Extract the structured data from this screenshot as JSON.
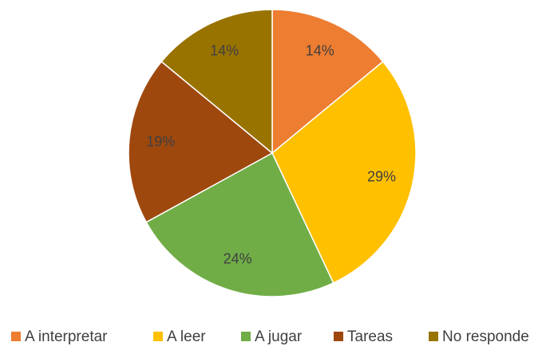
{
  "chart_data": {
    "type": "pie",
    "categories": [
      "A interpretar",
      "A leer",
      "A jugar",
      "Tareas",
      "No responde"
    ],
    "values": [
      14,
      29,
      24,
      19,
      14
    ],
    "value_labels": [
      "14%",
      "29%",
      "24%",
      "19%",
      "14%"
    ],
    "colors": [
      "#ED7D31",
      "#FFC000",
      "#70AD47",
      "#9E480E",
      "#997300"
    ],
    "legend": "bottom"
  }
}
